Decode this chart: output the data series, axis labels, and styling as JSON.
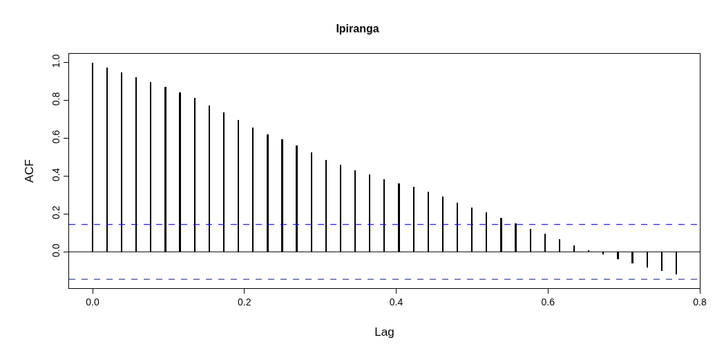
{
  "chart_data": {
    "type": "bar",
    "title": "Ipiranga",
    "xlabel": "Lag",
    "ylabel": "ACF",
    "x": [
      0,
      0.0192,
      0.0385,
      0.0577,
      0.0769,
      0.0962,
      0.1154,
      0.1346,
      0.1538,
      0.1731,
      0.1923,
      0.2115,
      0.2308,
      0.25,
      0.2692,
      0.2885,
      0.3077,
      0.3269,
      0.3462,
      0.3654,
      0.3846,
      0.4038,
      0.4231,
      0.4423,
      0.4615,
      0.4808,
      0.5,
      0.5192,
      0.5385,
      0.5577,
      0.5769,
      0.5962,
      0.6154,
      0.6346,
      0.6538,
      0.6731,
      0.6923,
      0.7115,
      0.7308,
      0.75,
      0.7692
    ],
    "values": [
      1.0,
      0.975,
      0.948,
      0.921,
      0.898,
      0.872,
      0.843,
      0.813,
      0.774,
      0.735,
      0.696,
      0.658,
      0.621,
      0.593,
      0.561,
      0.525,
      0.485,
      0.458,
      0.431,
      0.407,
      0.384,
      0.363,
      0.344,
      0.318,
      0.293,
      0.261,
      0.233,
      0.207,
      0.179,
      0.152,
      0.122,
      0.095,
      0.068,
      0.035,
      0.01,
      -0.013,
      -0.038,
      -0.06,
      -0.084,
      -0.101,
      -0.119
    ],
    "color": "#000000",
    "xlim": [
      -0.031,
      0.8
    ],
    "xticks": [
      {
        "value": 0,
        "label": "0.0"
      },
      0.2,
      0.4,
      0.6,
      0.8
    ],
    "ylim": [
      -0.192,
      1.046
    ],
    "yticks": [
      {
        "value": 0,
        "label": "0.0"
      },
      0.2,
      0.4,
      0.6,
      0.8,
      {
        "value": 1,
        "label": "1.0"
      }
    ],
    "ref_lines": [
      {
        "axis": "y",
        "value": 0,
        "color": "#000000",
        "line_style": "solid"
      },
      {
        "axis": "y",
        "value": 0.145,
        "color": "#0000ff",
        "line_style": "dashed"
      },
      {
        "axis": "y",
        "value": -0.145,
        "color": "#0000ff",
        "line_style": "dashed"
      }
    ]
  }
}
